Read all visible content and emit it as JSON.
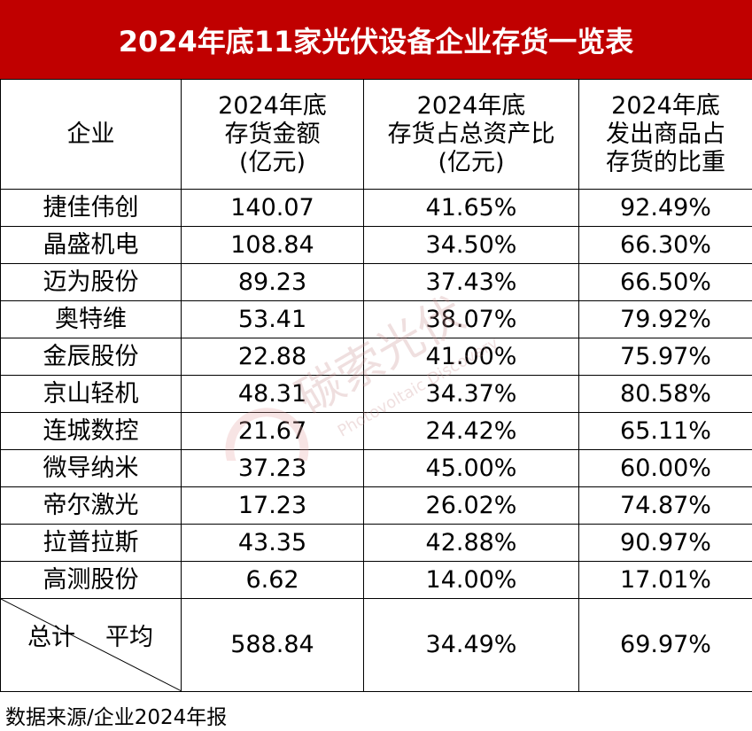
{
  "title": "2024年底11家光伏设备企业存货一览表",
  "headers": [
    [
      "企业"
    ],
    [
      "2024年底",
      "存货金额",
      "(亿元)"
    ],
    [
      "2024年底",
      "存货占总资产比",
      "(亿元)"
    ],
    [
      "2024年底",
      "发出商品占",
      "存货的比重"
    ]
  ],
  "rows": [
    {
      "company": "捷佳伟创",
      "inventory": "140.07",
      "ratio": "41.65%",
      "shipped": "92.49%"
    },
    {
      "company": "晶盛机电",
      "inventory": "108.84",
      "ratio": "34.50%",
      "shipped": "66.30%"
    },
    {
      "company": "迈为股份",
      "inventory": "89.23",
      "ratio": "37.43%",
      "shipped": "66.50%"
    },
    {
      "company": "奥特维",
      "inventory": "53.41",
      "ratio": "38.07%",
      "shipped": "79.92%"
    },
    {
      "company": "金辰股份",
      "inventory": "22.88",
      "ratio": "41.00%",
      "shipped": "75.97%"
    },
    {
      "company": "京山轻机",
      "inventory": "48.31",
      "ratio": "34.37%",
      "shipped": "80.58%"
    },
    {
      "company": "连城数控",
      "inventory": "21.67",
      "ratio": "24.42%",
      "shipped": "65.11%"
    },
    {
      "company": "微导纳米",
      "inventory": "37.23",
      "ratio": "45.00%",
      "shipped": "60.00%"
    },
    {
      "company": "帝尔激光",
      "inventory": "17.23",
      "ratio": "26.02%",
      "shipped": "74.87%"
    },
    {
      "company": "拉普拉斯",
      "inventory": "43.35",
      "ratio": "42.88%",
      "shipped": "90.97%"
    },
    {
      "company": "高测股份",
      "inventory": "6.62",
      "ratio": "14.00%",
      "shipped": "17.01%"
    }
  ],
  "total": {
    "label_total": "总计",
    "label_avg": "平均",
    "inventory": "588.84",
    "ratio": "34.49%",
    "shipped": "69.97%"
  },
  "footer": "数据来源/企业2024年报",
  "watermark": {
    "main": "碳索光伏",
    "sub": "Photovoltaic Discovery"
  },
  "colors": {
    "title_bg": "#c00000",
    "title_text": "#ffffff",
    "watermark": "#e6a0a0"
  }
}
